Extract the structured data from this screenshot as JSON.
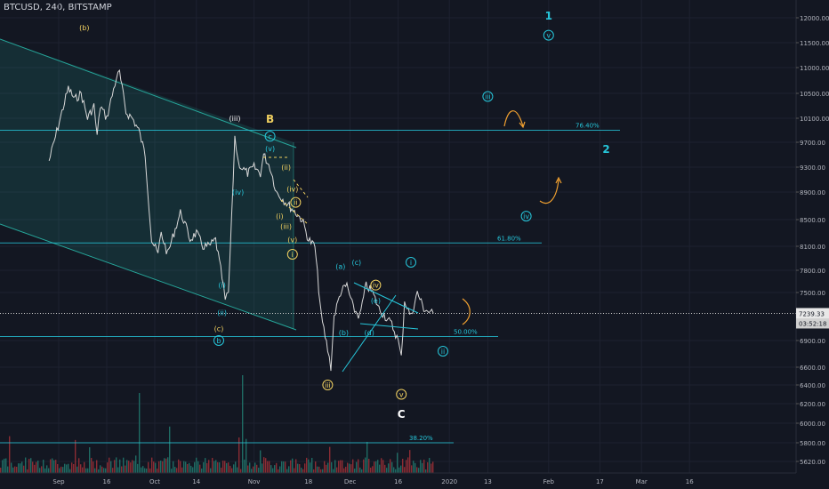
{
  "header": {
    "symbol": "BTCUSD, 240, BITSTAMP"
  },
  "colors": {
    "background": "#131722",
    "channel": "#26a69a",
    "fib": "#26c6da",
    "wave_cyan": "#26c6da",
    "wave_yellow": "#f0d060",
    "wave_white": "#ffffff",
    "arrow_orange": "#f0a030",
    "price_white": "#d8d8d8",
    "vol_red": "#8b2c34",
    "vol_green": "#1f6b63"
  },
  "price_axis": {
    "current_price": "7239.33",
    "countdown": "03:52:18"
  },
  "chart_data": {
    "type": "line",
    "x_ticks": [
      "Sep",
      "16",
      "Oct",
      "14",
      "Nov",
      "18",
      "Dec",
      "16",
      "2020",
      "13",
      "Feb",
      "17",
      "Mar",
      "16"
    ],
    "y_ticks": [
      "12000.00",
      "11500.00",
      "11000.00",
      "10500.00",
      "10100.00",
      "9700.00",
      "9300.00",
      "8900.00",
      "8500.00",
      "8100.00",
      "7800.00",
      "7500.00",
      "6900.00",
      "6600.00",
      "6400.00",
      "6200.00",
      "6000.00",
      "5800.00",
      "5620.00"
    ],
    "ylim": [
      5560,
      12150
    ],
    "price_path": [
      [
        "Aug 29",
        9400
      ],
      [
        "Sep 2",
        10200
      ],
      [
        "Sep 4",
        10600
      ],
      [
        "Sep 6",
        10400
      ],
      [
        "Sep 8",
        10500
      ],
      [
        "Sep 10",
        10100
      ],
      [
        "Sep 12",
        10300
      ],
      [
        "Sep 13",
        9800
      ],
      [
        "Sep 14",
        10300
      ],
      [
        "Sep 16",
        10100
      ],
      [
        "Sep 19",
        10800
      ],
      [
        "Sep 20",
        10900
      ],
      [
        "Sep 22",
        10200
      ],
      [
        "Sep 24",
        10100
      ],
      [
        "Sep 26",
        9900
      ],
      [
        "Sep 28",
        9500
      ],
      [
        "Sep 30",
        8200
      ],
      [
        "Oct 2",
        8000
      ],
      [
        "Oct 3",
        8300
      ],
      [
        "Oct 5",
        8000
      ],
      [
        "Oct 7",
        8300
      ],
      [
        "Oct 9",
        8600
      ],
      [
        "Oct 10",
        8500
      ],
      [
        "Oct 12",
        8200
      ],
      [
        "Oct 14",
        8300
      ],
      [
        "Oct 16",
        8100
      ],
      [
        "Oct 18",
        8100
      ],
      [
        "Oct 20",
        8200
      ],
      [
        "Oct 22",
        7700
      ],
      [
        "Oct 23",
        7400
      ],
      [
        "Oct 24",
        7500
      ],
      [
        "Oct 25",
        8500
      ],
      [
        "Oct 26",
        9800
      ],
      [
        "Oct 27",
        9400
      ],
      [
        "Oct 28",
        9300
      ],
      [
        "Oct 30",
        9200
      ],
      [
        "Nov 1",
        9300
      ],
      [
        "Nov 3",
        9200
      ],
      [
        "Nov 4",
        9500
      ],
      [
        "Nov 6",
        9300
      ],
      [
        "Nov 8",
        8900
      ],
      [
        "Nov 10",
        8800
      ],
      [
        "Nov 12",
        8700
      ],
      [
        "Nov 14",
        8600
      ],
      [
        "Nov 16",
        8500
      ],
      [
        "Nov 18",
        8200
      ],
      [
        "Nov 20",
        8100
      ],
      [
        "Nov 22",
        7200
      ],
      [
        "Nov 24",
        6800
      ],
      [
        "Nov 25",
        6600
      ],
      [
        "Nov 26",
        7200
      ],
      [
        "Nov 28",
        7500
      ],
      [
        "Nov 30",
        7600
      ],
      [
        "Dec 2",
        7300
      ],
      [
        "Dec 4",
        7200
      ],
      [
        "Dec 6",
        7600
      ],
      [
        "Dec 8",
        7500
      ],
      [
        "Dec 10",
        7300
      ],
      [
        "Dec 12",
        7200
      ],
      [
        "Dec 14",
        7100
      ],
      [
        "Dec 16",
        6900
      ],
      [
        "Dec 17",
        6700
      ],
      [
        "Dec 18",
        7400
      ],
      [
        "Dec 20",
        7200
      ],
      [
        "Dec 22",
        7500
      ],
      [
        "Dec 24",
        7300
      ],
      [
        "Dec 26",
        7250
      ],
      [
        "Dec 27",
        7239
      ]
    ],
    "fib_levels": [
      {
        "label": "76.40%",
        "price": 9900
      },
      {
        "label": "61.80%",
        "price": 8150
      },
      {
        "label": "50.00%",
        "price": 6950
      },
      {
        "label": "38.20%",
        "price": 5800
      }
    ],
    "wave_labels": [
      {
        "text": "(b)",
        "date": "Sep 9",
        "price": 11800,
        "color": "yellow",
        "circle": false
      },
      {
        "text": "(iii)",
        "date": "Oct 26",
        "price": 10100,
        "color": "white",
        "circle": false
      },
      {
        "text": "(iv)",
        "date": "Oct 27",
        "price": 8900,
        "color": "cyan",
        "circle": false
      },
      {
        "text": "(i)",
        "date": "Oct 22",
        "price": 7600,
        "color": "cyan",
        "circle": false
      },
      {
        "text": "(ii)",
        "date": "Oct 22",
        "price": 7250,
        "color": "cyan",
        "circle": false
      },
      {
        "text": "(c)",
        "date": "Oct 21",
        "price": 7050,
        "color": "yellow",
        "circle": false
      },
      {
        "text": "b",
        "date": "Oct 21",
        "price": 6900,
        "color": "cyan",
        "circle": true
      },
      {
        "text": "B",
        "date": "Nov 6",
        "price": 10100,
        "color": "yellow",
        "circle": false
      },
      {
        "text": "c",
        "date": "Nov 6",
        "price": 9800,
        "color": "cyan",
        "circle": true
      },
      {
        "text": "(v)",
        "date": "Nov 6",
        "price": 9600,
        "color": "cyan",
        "circle": false
      },
      {
        "text": "(ii)",
        "date": "Nov 11",
        "price": 9300,
        "color": "yellow",
        "circle": false
      },
      {
        "text": "(iv)",
        "date": "Nov 13",
        "price": 8950,
        "color": "yellow",
        "circle": false
      },
      {
        "text": "ii",
        "date": "Nov 14",
        "price": 8750,
        "color": "yellow",
        "circle": true
      },
      {
        "text": "(i)",
        "date": "Nov 9",
        "price": 8550,
        "color": "yellow",
        "circle": false
      },
      {
        "text": "(iii)",
        "date": "Nov 11",
        "price": 8400,
        "color": "yellow",
        "circle": false
      },
      {
        "text": "(v)",
        "date": "Nov 13",
        "price": 8200,
        "color": "yellow",
        "circle": false
      },
      {
        "text": "i",
        "date": "Nov 13",
        "price": 8000,
        "color": "yellow",
        "circle": true
      },
      {
        "text": "(a)",
        "date": "Nov 28",
        "price": 7850,
        "color": "cyan",
        "circle": false
      },
      {
        "text": "(c)",
        "date": "Dec 3",
        "price": 7900,
        "color": "cyan",
        "circle": false
      },
      {
        "text": "iv",
        "date": "Dec 9",
        "price": 7600,
        "color": "yellow",
        "circle": true
      },
      {
        "text": "(e)",
        "date": "Dec 9",
        "price": 7400,
        "color": "cyan",
        "circle": false
      },
      {
        "text": "i",
        "date": "Dec 20",
        "price": 7900,
        "color": "cyan",
        "circle": true
      },
      {
        "text": "(b)",
        "date": "Nov 29",
        "price": 7000,
        "color": "cyan",
        "circle": false
      },
      {
        "text": "(d)",
        "date": "Dec 7",
        "price": 7000,
        "color": "cyan",
        "circle": false
      },
      {
        "text": "iii",
        "date": "Nov 24",
        "price": 6400,
        "color": "yellow",
        "circle": true
      },
      {
        "text": "v",
        "date": "Dec 17",
        "price": 6300,
        "color": "yellow",
        "circle": true
      },
      {
        "text": "C",
        "date": "Dec 17",
        "price": 6100,
        "color": "white",
        "circle": false
      },
      {
        "text": "ii",
        "date": "Dec 30",
        "price": 6780,
        "color": "cyan",
        "circle": true
      },
      {
        "text": "iii",
        "date": "Jan 13",
        "price": 10450,
        "color": "cyan",
        "circle": true
      },
      {
        "text": "iv",
        "date": "Jan 25",
        "price": 8550,
        "color": "cyan",
        "circle": true
      },
      {
        "text": "v",
        "date": "Feb 1",
        "price": 11650,
        "color": "cyan",
        "circle": true
      },
      {
        "text": "1",
        "date": "Feb 1",
        "price": 12050,
        "color": "cyan",
        "circle": false
      },
      {
        "text": "2",
        "date": "Feb 19",
        "price": 9600,
        "color": "cyan",
        "circle": false
      }
    ]
  }
}
